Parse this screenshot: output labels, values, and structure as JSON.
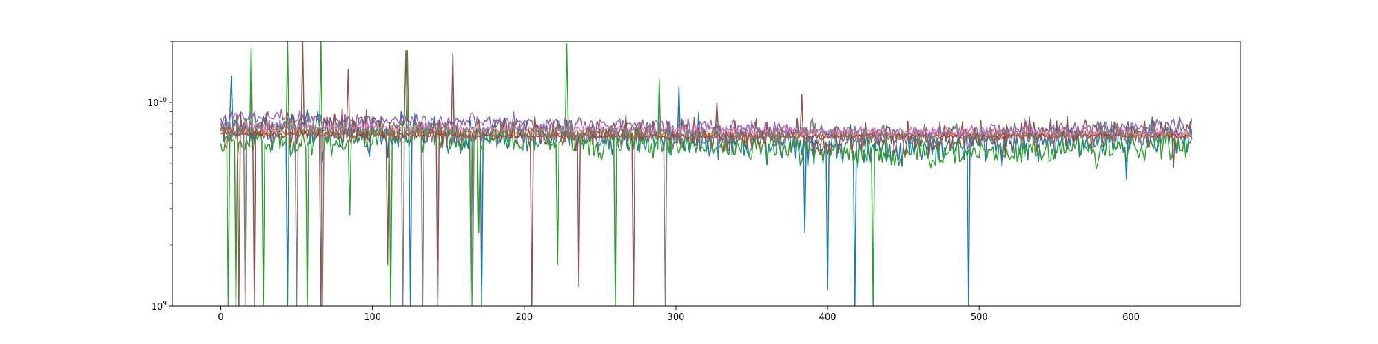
{
  "chart_data": {
    "type": "line",
    "title": "",
    "xlabel": "",
    "ylabel": "",
    "xlim": [
      -32,
      672
    ],
    "ylim": [
      1000000000,
      20000000000
    ],
    "yscale": "log",
    "grid": false,
    "legend": "none",
    "x_ticks": [
      0,
      100,
      200,
      300,
      400,
      500,
      600
    ],
    "x_tick_labels": [
      "0",
      "100",
      "200",
      "300",
      "400",
      "500",
      "600"
    ],
    "y_ticks": [
      {
        "value": 1000000000,
        "base": "10",
        "exp": "9"
      },
      {
        "value": 10000000000,
        "base": "10",
        "exp": "10"
      }
    ],
    "n_points": 641,
    "series": [
      {
        "color": "#1f77b4",
        "base": [
          [
            0,
            7600000000.0
          ],
          [
            150,
            6900000000.0
          ],
          [
            300,
            6700000000.0
          ],
          [
            450,
            6100000000.0
          ],
          [
            640,
            6800000000.0
          ]
        ],
        "noise": 0.08,
        "spikes": [
          [
            7,
            13500000000.0
          ],
          [
            44,
            1000000000.0
          ],
          [
            125,
            1000000000.0
          ],
          [
            172,
            1000000000.0
          ],
          [
            302,
            12000000000.0
          ],
          [
            385,
            2300000000.0
          ],
          [
            400,
            1200000000.0
          ],
          [
            418,
            1000000000.0
          ],
          [
            493,
            1000000000.0
          ],
          [
            597,
            4200000000.0
          ]
        ]
      },
      {
        "color": "#ff7f0e",
        "base": [
          [
            0,
            7200000000.0
          ],
          [
            300,
            7000000000.0
          ],
          [
            640,
            6900000000.0
          ]
        ],
        "noise": 0.015,
        "spikes": []
      },
      {
        "color": "#2ca02c",
        "base": [
          [
            0,
            6200000000.0
          ],
          [
            150,
            6800000000.0
          ],
          [
            300,
            6300000000.0
          ],
          [
            450,
            5600000000.0
          ],
          [
            640,
            6200000000.0
          ]
        ],
        "noise": 0.07,
        "spikes": [
          [
            5,
            1000000000.0
          ],
          [
            10,
            1000000000.0
          ],
          [
            20,
            18500000000.0
          ],
          [
            28,
            1000000000.0
          ],
          [
            44,
            20000000000.0
          ],
          [
            57,
            1000000000.0
          ],
          [
            66,
            20000000000.0
          ],
          [
            85,
            2800000000.0
          ],
          [
            112,
            1000000000.0
          ],
          [
            123,
            18000000000.0
          ],
          [
            165,
            1000000000.0
          ],
          [
            170,
            2300000000.0
          ],
          [
            222,
            1600000000.0
          ],
          [
            228,
            19500000000.0
          ],
          [
            260,
            1000000000.0
          ],
          [
            289,
            13000000000.0
          ],
          [
            430,
            1000000000.0
          ]
        ]
      },
      {
        "color": "#d62728",
        "base": [
          [
            0,
            7000000000.0
          ],
          [
            300,
            6800000000.0
          ],
          [
            640,
            6900000000.0
          ]
        ],
        "noise": 0.012,
        "spikes": []
      },
      {
        "color": "#9467bd",
        "base": [
          [
            0,
            8400000000.0
          ],
          [
            150,
            8100000000.0
          ],
          [
            300,
            7600000000.0
          ],
          [
            450,
            7000000000.0
          ],
          [
            640,
            7800000000.0
          ]
        ],
        "noise": 0.035,
        "spikes": []
      },
      {
        "color": "#8c564b",
        "base": [
          [
            0,
            7500000000.0
          ],
          [
            150,
            7300000000.0
          ],
          [
            300,
            7000000000.0
          ],
          [
            450,
            6600000000.0
          ],
          [
            640,
            7200000000.0
          ]
        ],
        "noise": 0.07,
        "spikes": [
          [
            12,
            1000000000.0
          ],
          [
            22,
            1000000000.0
          ],
          [
            54,
            20000000000.0
          ],
          [
            66,
            1000000000.0
          ],
          [
            84,
            14500000000.0
          ],
          [
            110,
            1600000000.0
          ],
          [
            122,
            18000000000.0
          ],
          [
            143,
            1000000000.0
          ],
          [
            153,
            17500000000.0
          ],
          [
            205,
            1000000000.0
          ],
          [
            236,
            1250000000.0
          ],
          [
            272,
            1000000000.0
          ],
          [
            327,
            10000000000.0
          ],
          [
            383,
            11000000000.0
          ],
          [
            628,
            4800000000.0
          ]
        ]
      },
      {
        "color": "#e377c2",
        "base": [
          [
            0,
            7700000000.0
          ],
          [
            300,
            7300000000.0
          ],
          [
            640,
            7100000000.0
          ]
        ],
        "noise": 0.02,
        "spikes": []
      },
      {
        "color": "#7f7f7f",
        "base": [
          [
            0,
            7400000000.0
          ],
          [
            150,
            7100000000.0
          ],
          [
            300,
            6900000000.0
          ],
          [
            640,
            7000000000.0
          ]
        ],
        "noise": 0.05,
        "spikes": [
          [
            16,
            1000000000.0
          ],
          [
            50,
            1000000000.0
          ],
          [
            67,
            1000000000.0
          ],
          [
            120,
            1000000000.0
          ],
          [
            133,
            1000000000.0
          ],
          [
            166,
            1000000000.0
          ],
          [
            293,
            1000000000.0
          ]
        ]
      }
    ]
  }
}
